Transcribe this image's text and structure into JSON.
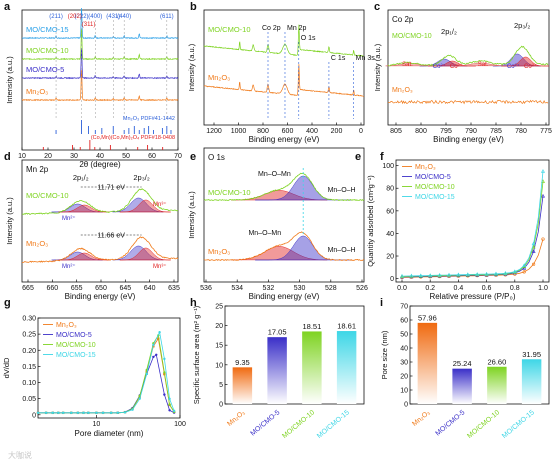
{
  "colors": {
    "mn2o3": "#f07a1a",
    "cmo5": "#3a2fc8",
    "cmo10": "#7ed321",
    "cmo15": "#3dd6e6",
    "cmo_xrd": "#2aa0e8",
    "red_ref": "#e02020",
    "blue_ref": "#2b5fd9"
  },
  "panels": {
    "a": {
      "letter": "a",
      "xlabel": "2θ (degree)",
      "ylabel": "Intensity (a.u.)",
      "ticks_x": [
        "10",
        "20",
        "30",
        "40",
        "50",
        "60",
        "70"
      ],
      "hkl_top": [
        "(211)",
        "(222)",
        "(400)",
        "(431)",
        "(440)",
        "(611)"
      ],
      "hkl_red": [
        "(202)",
        "(311)"
      ],
      "series_labels": [
        "MO/CMO-15",
        "MO/CMO-10",
        "MO/CMO-5",
        "Mn₂O₃"
      ],
      "ref_mn2o3": "Mn₂O₃ PDF#41-1442",
      "ref_cmo": "(Co,Mn)(Co,Mn)₂O₄ PDF#18-0408"
    },
    "b": {
      "letter": "b",
      "xlabel": "Binding energy (eV)",
      "ylabel": "Intensity (a.u.)",
      "ticks_x": [
        "1200",
        "1000",
        "800",
        "600",
        "400",
        "200",
        "0"
      ],
      "series_labels": [
        "MO/CMO-10",
        "Mn₂O₃"
      ],
      "peaks": [
        "Co 2p",
        "Mn 2p",
        "O 1s",
        "C 1s",
        "Mn 3s"
      ]
    },
    "c": {
      "letter": "c",
      "title": "Co 2p",
      "xlabel": "Binding energy (eV)",
      "ylabel": "Intensity (a.u.)",
      "ticks_x": [
        "805",
        "800",
        "795",
        "790",
        "785",
        "780",
        "775"
      ],
      "series_labels": [
        "MO/CMO-10",
        "Mn₂O₃"
      ],
      "annotations": [
        "2p₁/₂",
        "2p₃/₂",
        "Sat.",
        "Co²⁺",
        "Co³⁺",
        "Sat.",
        "Co²⁺",
        "Co³⁺"
      ]
    },
    "d": {
      "letter": "d",
      "title": "Mn 2p",
      "xlabel": "Binding energy (eV)",
      "ylabel": "Intensity (a.u.)",
      "ticks_x": [
        "665",
        "660",
        "655",
        "650",
        "645",
        "640",
        "635"
      ],
      "series_labels": [
        "MO/CMO-10",
        "Mn₂O₃"
      ],
      "annotations": [
        "2p₁/₂",
        "2p₃/₂",
        "11.71 eV",
        "11.66 eV",
        "Mn²⁺",
        "Mn³⁺",
        "Mn²⁺",
        "Mn³⁺"
      ]
    },
    "e": {
      "letter": "e",
      "title": "O 1s",
      "xlabel": "Binding energy (eV)",
      "ylabel": "Intensity (a.u.)",
      "ticks_x": [
        "536",
        "534",
        "532",
        "530",
        "528",
        "526"
      ],
      "series_labels": [
        "MO/CMO-10",
        "Mn₂O₃"
      ],
      "annotations": [
        "Mn–O–Mn",
        "Mn–O–H",
        "Mn–O–Mn",
        "Mn–O–H"
      ]
    },
    "f": {
      "letter": "f",
      "xlabel": "Relative pressure (P/P₀)",
      "ylabel": "Quantity adsorbed (cm³g⁻¹)",
      "ticks_x": [
        "0.0",
        "0.2",
        "0.4",
        "0.6",
        "0.8",
        "1.0"
      ],
      "ticks_y": [
        "0",
        "20",
        "40",
        "60",
        "80",
        "100"
      ],
      "legend": [
        "Mn₂O₃",
        "MO/CMO-5",
        "MO/CMO-10",
        "MO/CMO-15"
      ]
    },
    "g": {
      "letter": "g",
      "xlabel": "Pore diameter (nm)",
      "ylabel": "dV/dD",
      "ticks_x": [
        "10",
        "100"
      ],
      "ticks_y": [
        "0",
        "0.05",
        "0.10",
        "0.15",
        "0.20",
        "0.25",
        "0.30"
      ],
      "legend": [
        "Mn₂O₃",
        "MO/CMO-5",
        "MO/CMO-10",
        "MO/CMO-15"
      ]
    },
    "h": {
      "letter": "h",
      "ylabel": "Specific surface area (m² g⁻¹)",
      "ticks_y": [
        "0",
        "5",
        "10",
        "15",
        "20",
        "25"
      ]
    },
    "i": {
      "letter": "i",
      "ylabel": "Pore size (nm)",
      "ticks_y": [
        "0",
        "10",
        "20",
        "30",
        "40",
        "50",
        "60",
        "70"
      ]
    },
    "e_extra": {
      "letter": "e"
    }
  },
  "watermark": "大咖说",
  "chart_data": [
    {
      "panel": "a",
      "type": "line",
      "x_range": [
        10,
        70
      ],
      "series": [
        {
          "name": "MO/CMO-15"
        },
        {
          "name": "MO/CMO-10"
        },
        {
          "name": "MO/CMO-5"
        },
        {
          "name": "Mn₂O₃"
        }
      ],
      "peaks_2theta": [
        23.1,
        32.9,
        38.2,
        45.1,
        49.3,
        55.1,
        65.7
      ],
      "ref_sticks_mn2o3": [
        23.1,
        32.9,
        35.6,
        38.2,
        40.7,
        45.1,
        49.3,
        51.1,
        53.2,
        55.1,
        57.0,
        58.7,
        60.6,
        64.0,
        65.7,
        67.3
      ],
      "ref_sticks_cmo": [
        18.2,
        29.4,
        32.4,
        36.1,
        38.0,
        44.0,
        54.5,
        58.3,
        64.1
      ]
    },
    {
      "panel": "b",
      "type": "line",
      "x_range": [
        1300,
        0
      ],
      "peak_positions_eV": {
        "Co 2p": 780,
        "Mn 2p": 642,
        "O 1s": 530,
        "C 1s": 285,
        "Mn 3s": 84
      }
    },
    {
      "panel": "c",
      "type": "line",
      "x_range": [
        808,
        775
      ],
      "peak_positions_eV": {
        "2p1/2": 795.5,
        "2p3/2": 780.5
      }
    },
    {
      "panel": "d",
      "type": "line",
      "x_range": [
        665,
        635
      ],
      "peak_positions_eV": {
        "2p1/2": 653.7,
        "2p3/2": 642.0
      },
      "splitting_eV": {
        "MO/CMO-10": 11.71,
        "Mn₂O₃": 11.66
      }
    },
    {
      "panel": "e",
      "type": "line",
      "x_range": [
        536,
        526
      ],
      "peak_positions_eV": {
        "Mn–O–Mn": 529.8,
        "Mn–O–H": 531.5
      }
    },
    {
      "panel": "f",
      "type": "line",
      "x_range": [
        0,
        1.0
      ],
      "ylim": [
        -3,
        105
      ],
      "series": [
        {
          "name": "Mn₂O₃",
          "final": 35
        },
        {
          "name": "MO/CMO-5",
          "final": 73
        },
        {
          "name": "MO/CMO-10",
          "final": 86
        },
        {
          "name": "MO/CMO-15",
          "final": 95
        }
      ]
    },
    {
      "panel": "g",
      "type": "line",
      "x_scale": "log",
      "x_range": [
        2,
        100
      ],
      "ylim": [
        -0.01,
        0.3
      ],
      "series": [
        {
          "name": "Mn₂O₃",
          "peak_x": 55,
          "peak_y": 0.23
        },
        {
          "name": "MO/CMO-5",
          "peak_x": 52,
          "peak_y": 0.18
        },
        {
          "name": "MO/CMO-10",
          "peak_x": 55,
          "peak_y": 0.24
        },
        {
          "name": "MO/CMO-15",
          "peak_x": 57,
          "peak_y": 0.25
        }
      ]
    },
    {
      "panel": "h",
      "type": "bar",
      "ylim": [
        0,
        25
      ],
      "categories": [
        "Mn₂O₃",
        "MO/CMO-5",
        "MO/CMO-10",
        "MO/CMO-15"
      ],
      "values": [
        9.35,
        17.05,
        18.51,
        18.61
      ],
      "value_labels": [
        "9.35",
        "17.05",
        "18.51",
        "18.61"
      ]
    },
    {
      "panel": "i",
      "type": "bar",
      "ylim": [
        0,
        70
      ],
      "categories": [
        "Mn₂O₃",
        "MO/CMO-5",
        "MO/CMO-10",
        "MO/CMO-15"
      ],
      "values": [
        57.96,
        25.24,
        26.6,
        31.95
      ],
      "value_labels": [
        "57.96",
        "25.24",
        "26.60",
        "31.95"
      ]
    }
  ]
}
